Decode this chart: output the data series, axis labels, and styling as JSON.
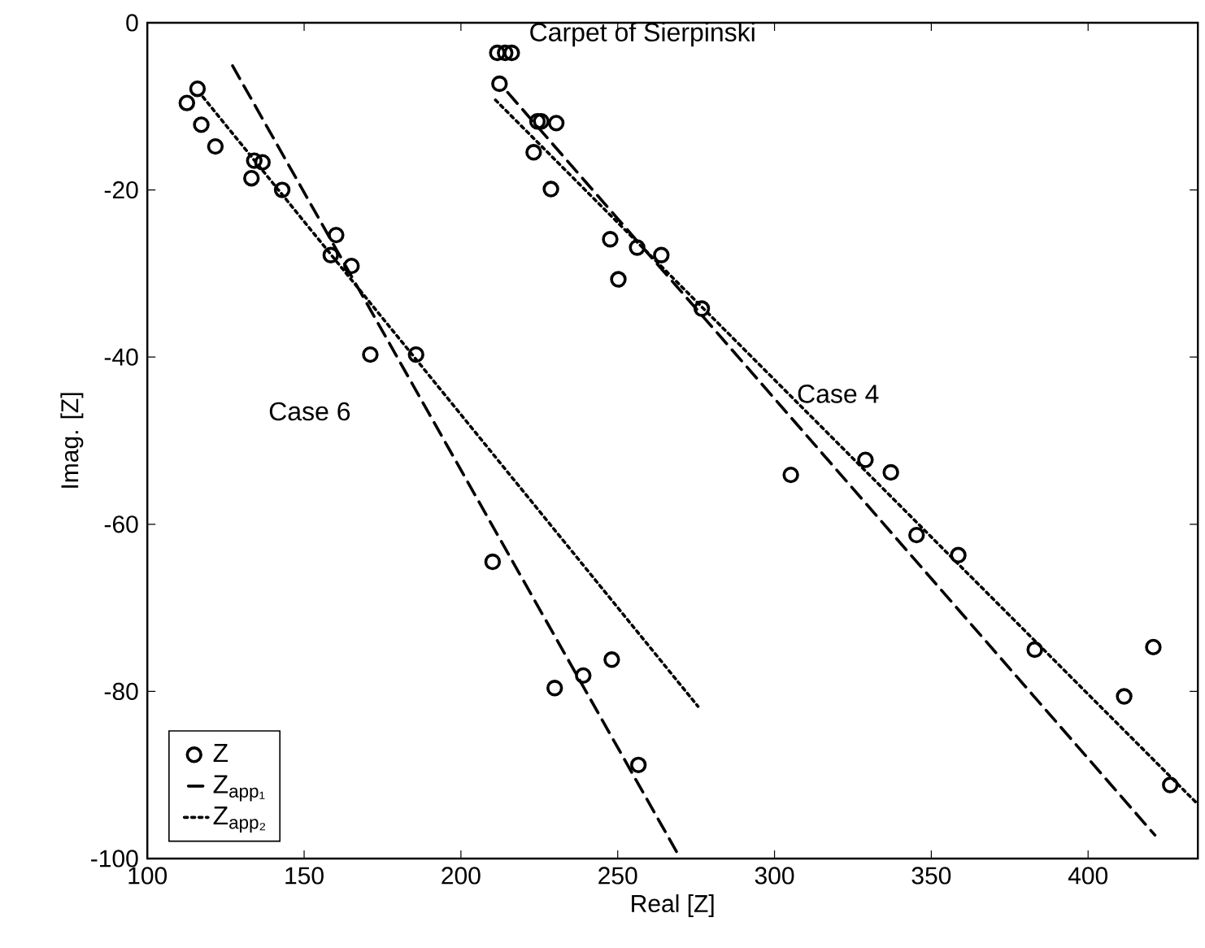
{
  "chart_data": {
    "type": "scatter",
    "xlabel": "Real [Z]",
    "ylabel": "Imag. [Z]",
    "xlim": [
      100,
      435
    ],
    "ylim": [
      -100,
      0
    ],
    "xticks": [
      100,
      150,
      200,
      250,
      300,
      350,
      400
    ],
    "yticks": [
      -100,
      -80,
      -60,
      -40,
      -20,
      0
    ],
    "legend": "bottom left",
    "series": [
      {
        "name": "Z",
        "marker": "circle",
        "color": "#000000",
        "x": [
          116.0,
          112.6,
          117.2,
          121.7,
          134.1,
          136.7,
          133.2,
          143.0,
          160.2,
          158.5,
          165.1,
          171.1,
          185.7,
          210.1,
          229.9,
          239.0,
          248.1,
          256.6,
          211.6,
          214.1,
          216.2,
          212.3,
          224.4,
          225.6,
          230.4,
          223.2,
          228.7,
          247.6,
          256.2,
          263.9,
          250.2,
          276.8,
          305.2,
          329.0,
          337.1,
          345.3,
          358.6,
          383.0,
          411.5,
          420.8,
          426.2
        ],
        "values": [
          -7.9,
          -9.6,
          -12.2,
          -14.8,
          -16.5,
          -16.7,
          -18.6,
          -20.0,
          -25.4,
          -27.8,
          -29.1,
          -39.7,
          -39.7,
          -64.5,
          -79.6,
          -78.1,
          -76.2,
          -88.8,
          -3.6,
          -3.6,
          -3.6,
          -7.3,
          -11.8,
          -11.8,
          -12.0,
          -15.5,
          -19.9,
          -25.9,
          -26.9,
          -27.8,
          -30.7,
          -34.2,
          -54.1,
          -52.3,
          -53.8,
          -61.3,
          -63.7,
          -75.0,
          -80.6,
          -74.7,
          -91.2
        ]
      },
      {
        "name": "Z$_{app₁}$",
        "type": "line",
        "line_style": "dashed",
        "color": "#000000",
        "x": [
          125.9,
          270.0
        ],
        "values": [
          -4.3,
          -100
        ]
      },
      {
        "type": "line",
        "line_style": "dashed",
        "color": "#000000",
        "x": [
          213.2,
          421.3
        ],
        "values": [
          -7.6,
          -97.2
        ]
      },
      {
        "name": "Z$_{app₂}$",
        "type": "line",
        "line_style": "dotted",
        "color": "#000000",
        "x": [
          116.9,
          275.6
        ],
        "values": [
          -8.5,
          -81.8
        ]
      },
      {
        "type": "line",
        "line_style": "dotted",
        "color": "#000000",
        "x": [
          210.1,
          435
        ],
        "values": [
          -8.9,
          -93.5
        ]
      }
    ],
    "annotations": [
      "Carpet of Sierpinski",
      "Case 6",
      "Case 4"
    ]
  }
}
